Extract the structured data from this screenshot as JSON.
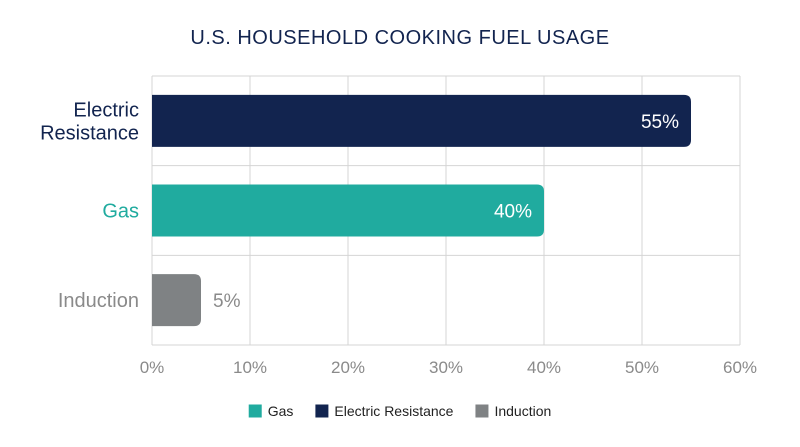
{
  "chart_data": {
    "type": "bar",
    "orientation": "horizontal",
    "title": "U.S. HOUSEHOLD COOKING FUEL USAGE",
    "xlabel": "",
    "ylabel": "",
    "categories": [
      {
        "lines": [
          "Electric",
          "Resistance"
        ],
        "name": "Electric Resistance"
      },
      {
        "lines": [
          "Gas"
        ],
        "name": "Gas"
      },
      {
        "lines": [
          "Induction"
        ],
        "name": "Induction"
      }
    ],
    "values": [
      55,
      40,
      5
    ],
    "value_labels": [
      "55%",
      "40%",
      "5%"
    ],
    "xlim": [
      0,
      60
    ],
    "ticks": [
      0,
      10,
      20,
      30,
      40,
      50,
      60
    ],
    "tick_labels": [
      "0%",
      "10%",
      "20%",
      "30%",
      "40%",
      "50%",
      "60%"
    ],
    "grid": true,
    "legend_position": "bottom",
    "legend": [
      {
        "label": "Gas",
        "color": "#20ab9f"
      },
      {
        "label": "Electric Resistance",
        "color": "#12244f"
      },
      {
        "label": "Induction",
        "color": "#7f8284"
      }
    ],
    "colors": {
      "Electric Resistance": "#12244f",
      "Gas": "#20ab9f",
      "Induction": "#7f8284"
    },
    "category_label_colors": {
      "Electric Resistance": "#12244f",
      "Gas": "#20ab9f",
      "Induction": "#8a8a8a"
    },
    "value_label_colors": {
      "Electric Resistance": "#ffffff",
      "Gas": "#ffffff",
      "Induction": "#8a8a8a"
    },
    "title_color": "#12244f",
    "grid_color": "#d4d4d4"
  }
}
